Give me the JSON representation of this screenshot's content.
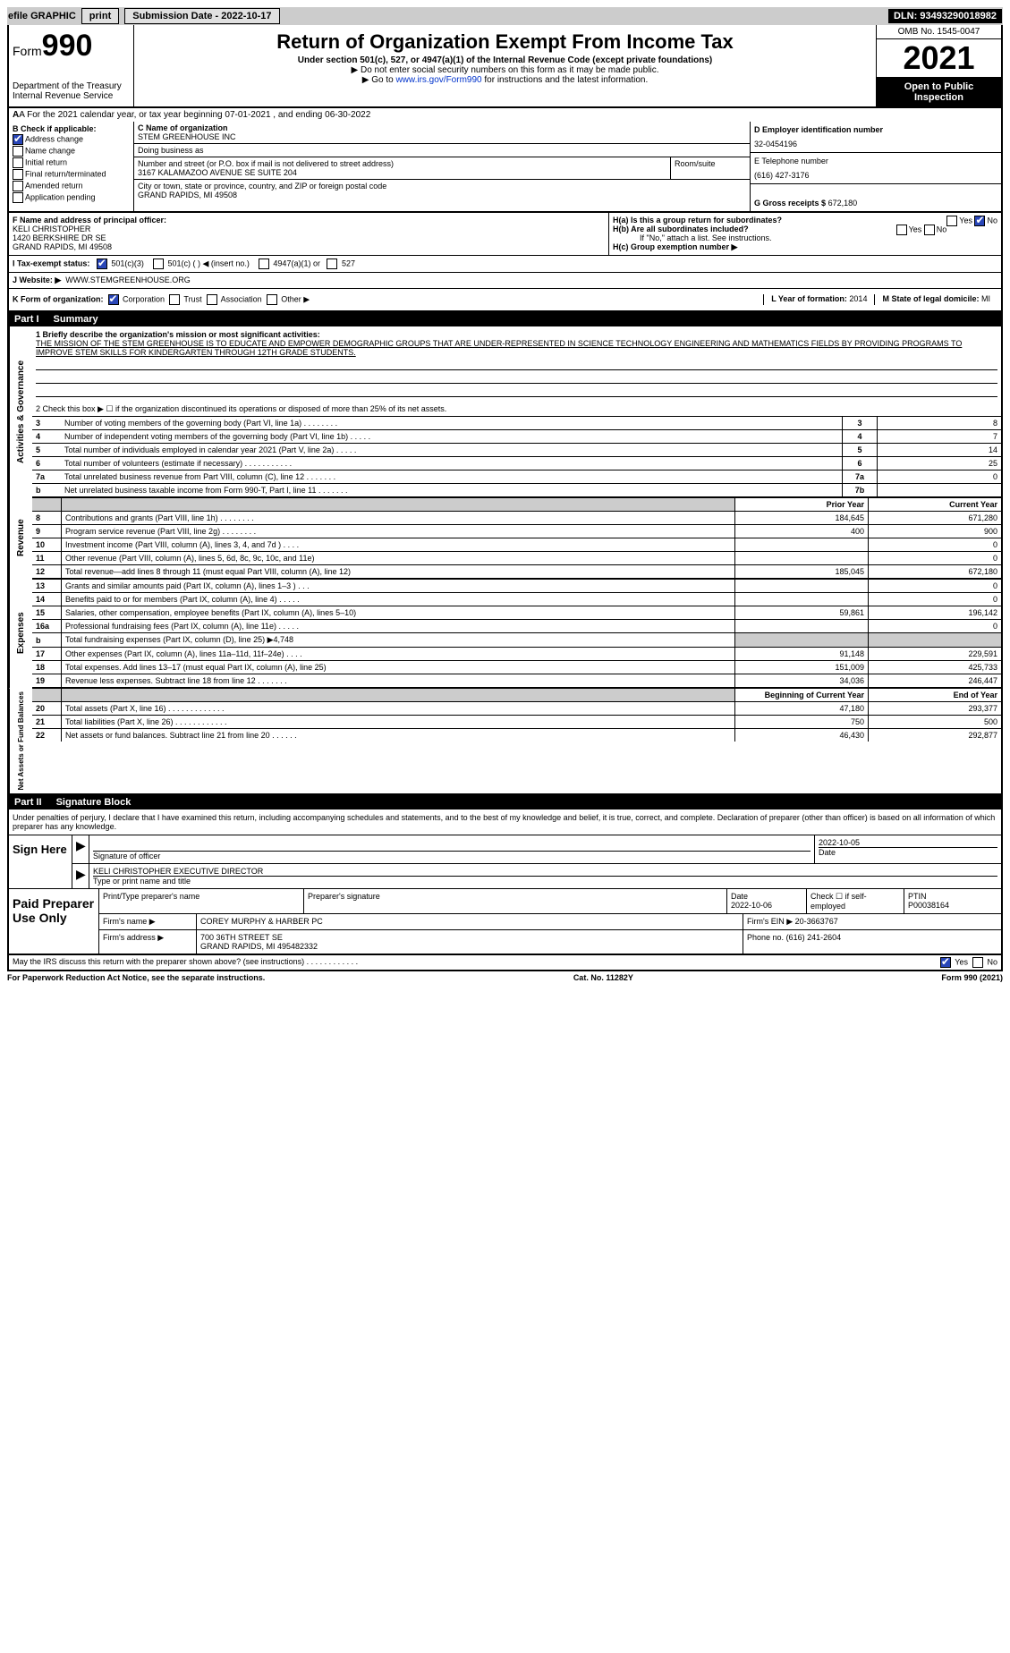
{
  "top_bar": {
    "efile": "efile GRAPHIC",
    "print": "print",
    "sub_date_label": "Submission Date - 2022-10-17",
    "dln": "DLN: 93493290018982"
  },
  "header": {
    "form_label": "Form",
    "form_num": "990",
    "dept": "Department of the Treasury",
    "irs": "Internal Revenue Service",
    "title": "Return of Organization Exempt From Income Tax",
    "sub1": "Under section 501(c), 527, or 4947(a)(1) of the Internal Revenue Code (except private foundations)",
    "sub2": "▶ Do not enter social security numbers on this form as it may be made public.",
    "sub3_pre": "▶ Go to ",
    "sub3_link": "www.irs.gov/Form990",
    "sub3_post": " for instructions and the latest information.",
    "omb": "OMB No. 1545-0047",
    "year": "2021",
    "open": "Open to Public Inspection"
  },
  "section_a": "A For the 2021 calendar year, or tax year beginning 07-01-2021    , and ending 06-30-2022",
  "col_b": {
    "title": "B Check if applicable:",
    "addr_change": "Address change",
    "name_change": "Name change",
    "initial": "Initial return",
    "final": "Final return/terminated",
    "amended": "Amended return",
    "app_pending": "Application pending"
  },
  "col_c": {
    "name_label": "C Name of organization",
    "name": "STEM GREENHOUSE INC",
    "dba_label": "Doing business as",
    "dba": "",
    "street_label": "Number and street (or P.O. box if mail is not delivered to street address)",
    "street": "3167 KALAMAZOO AVENUE SE SUITE 204",
    "room_label": "Room/suite",
    "city_label": "City or town, state or province, country, and ZIP or foreign postal code",
    "city": "GRAND RAPIDS, MI  49508"
  },
  "col_d": {
    "ein_label": "D Employer identification number",
    "ein": "32-0454196",
    "phone_label": "E Telephone number",
    "phone": "(616) 427-3176",
    "gross_label": "G Gross receipts $",
    "gross": "672,180"
  },
  "f_block": {
    "label": "F  Name and address of principal officer:",
    "name": "KELI CHRISTOPHER",
    "street": "1420 BERKSHIRE DR SE",
    "city": "GRAND RAPIDS, MI  49508"
  },
  "h_block": {
    "ha": "H(a)  Is this a group return for subordinates?",
    "hb": "H(b)  Are all subordinates included?",
    "hb_note": "If \"No,\" attach a list. See instructions.",
    "hc": "H(c)  Group exemption number ▶",
    "yes": "Yes",
    "no": "No"
  },
  "i_row": {
    "label": "I    Tax-exempt status:",
    "opt1": "501(c)(3)",
    "opt2": "501(c) (   ) ◀ (insert no.)",
    "opt3": "4947(a)(1) or",
    "opt4": "527"
  },
  "j_row": {
    "label": "J    Website: ▶",
    "url": "WWW.STEMGREENHOUSE.ORG"
  },
  "k_row": {
    "label": "K Form of organization:",
    "corp": "Corporation",
    "trust": "Trust",
    "assoc": "Association",
    "other": "Other ▶",
    "l_label": "L Year of formation:",
    "l_val": "2014",
    "m_label": "M State of legal domicile:",
    "m_val": "MI"
  },
  "part1": {
    "header_num": "Part I",
    "header_title": "Summary",
    "gov_label": "Activities & Governance",
    "rev_label": "Revenue",
    "exp_label": "Expenses",
    "net_label": "Net Assets or Fund Balances",
    "line1_label": "1  Briefly describe the organization's mission or most significant activities:",
    "mission": "THE MISSION OF THE STEM GREENHOUSE IS TO EDUCATE AND EMPOWER DEMOGRAPHIC GROUPS THAT ARE UNDER-REPRESENTED IN SCIENCE TECHNOLOGY ENGINEERING AND MATHEMATICS FIELDS BY PROVIDING PROGRAMS TO IMPROVE STEM SKILLS FOR KINDERGARTEN THROUGH 12TH GRADE STUDENTS.",
    "line2": "2   Check this box ▶ ☐  if the organization discontinued its operations or disposed of more than 25% of its net assets.",
    "rows_gov": [
      {
        "n": "3",
        "d": "Number of voting members of the governing body (Part VI, line 1a)   .    .    .    .    .    .    .    .",
        "box": "3",
        "v": "8"
      },
      {
        "n": "4",
        "d": "Number of independent voting members of the governing body (Part VI, line 1b)   .    .    .    .    .",
        "box": "4",
        "v": "7"
      },
      {
        "n": "5",
        "d": "Total number of individuals employed in calendar year 2021 (Part V, line 2a)   .    .    .    .    .",
        "box": "5",
        "v": "14"
      },
      {
        "n": "6",
        "d": "Total number of volunteers (estimate if necessary)    .    .    .    .    .    .    .    .    .    .    .",
        "box": "6",
        "v": "25"
      },
      {
        "n": "7a",
        "d": "Total unrelated business revenue from Part VIII, column (C), line 12   .    .    .    .    .    .    .",
        "box": "7a",
        "v": "0"
      },
      {
        "n": "b",
        "d": "Net unrelated business taxable income from Form 990-T, Part I, line 11   .    .    .    .    .    .    .",
        "box": "7b",
        "v": ""
      }
    ],
    "py_header": "Prior Year",
    "cy_header": "Current Year",
    "rows_rev": [
      {
        "n": "8",
        "d": "Contributions and grants (Part VIII, line 1h)   .    .    .    .    .    .    .    .",
        "py": "184,645",
        "cy": "671,280"
      },
      {
        "n": "9",
        "d": "Program service revenue (Part VIII, line 2g)   .    .    .    .    .    .    .    .",
        "py": "400",
        "cy": "900"
      },
      {
        "n": "10",
        "d": "Investment income (Part VIII, column (A), lines 3, 4, and 7d )   .    .    .    .",
        "py": "",
        "cy": "0"
      },
      {
        "n": "11",
        "d": "Other revenue (Part VIII, column (A), lines 5, 6d, 8c, 9c, 10c, and 11e)",
        "py": "",
        "cy": "0"
      },
      {
        "n": "12",
        "d": "Total revenue—add lines 8 through 11 (must equal Part VIII, column (A), line 12)",
        "py": "185,045",
        "cy": "672,180"
      }
    ],
    "rows_exp": [
      {
        "n": "13",
        "d": "Grants and similar amounts paid (Part IX, column (A), lines 1–3 )   .    .    .",
        "py": "",
        "cy": "0"
      },
      {
        "n": "14",
        "d": "Benefits paid to or for members (Part IX, column (A), line 4)   .    .    .    .    .",
        "py": "",
        "cy": "0"
      },
      {
        "n": "15",
        "d": "Salaries, other compensation, employee benefits (Part IX, column (A), lines 5–10)",
        "py": "59,861",
        "cy": "196,142"
      },
      {
        "n": "16a",
        "d": "Professional fundraising fees (Part IX, column (A), line 11e)   .    .    .    .    .",
        "py": "",
        "cy": "0"
      },
      {
        "n": "b",
        "d": "Total fundraising expenses (Part IX, column (D), line 25) ▶4,748",
        "py": "shaded",
        "cy": "shaded"
      },
      {
        "n": "17",
        "d": "Other expenses (Part IX, column (A), lines 11a–11d, 11f–24e)   .    .    .    .",
        "py": "91,148",
        "cy": "229,591"
      },
      {
        "n": "18",
        "d": "Total expenses. Add lines 13–17 (must equal Part IX, column (A), line 25)",
        "py": "151,009",
        "cy": "425,733"
      },
      {
        "n": "19",
        "d": "Revenue less expenses. Subtract line 18 from line 12   .    .    .    .    .    .    .",
        "py": "34,036",
        "cy": "246,447"
      }
    ],
    "bcy_header": "Beginning of Current Year",
    "eoy_header": "End of Year",
    "rows_net": [
      {
        "n": "20",
        "d": "Total assets (Part X, line 16)  .    .    .    .    .    .    .    .    .    .    .    .    .",
        "py": "47,180",
        "cy": "293,377"
      },
      {
        "n": "21",
        "d": "Total liabilities (Part X, line 26)   .    .    .    .    .    .    .    .    .    .    .    .",
        "py": "750",
        "cy": "500"
      },
      {
        "n": "22",
        "d": "Net assets or fund balances. Subtract line 21 from line 20   .    .    .    .    .    .",
        "py": "46,430",
        "cy": "292,877"
      }
    ]
  },
  "part2": {
    "header_num": "Part II",
    "header_title": "Signature Block",
    "declaration": "Under penalties of perjury, I declare that I have examined this return, including accompanying schedules and statements, and to the best of my knowledge and belief, it is true, correct, and complete. Declaration of preparer (other than officer) is based on all information of which preparer has any knowledge.",
    "sign_here": "Sign Here",
    "sig_officer": "Signature of officer",
    "sig_date": "2022-10-05",
    "date_label": "Date",
    "officer_name": "KELI CHRISTOPHER  EXECUTIVE DIRECTOR",
    "type_label": "Type or print name and title",
    "paid_prep": "Paid Preparer Use Only",
    "prep_name_label": "Print/Type preparer's name",
    "prep_sig_label": "Preparer's signature",
    "prep_date_label": "Date",
    "prep_date": "2022-10-06",
    "check_label": "Check ☐ if self-employed",
    "ptin_label": "PTIN",
    "ptin": "P00038164",
    "firm_name_label": "Firm's name    ▶",
    "firm_name": "COREY MURPHY & HARBER PC",
    "firm_ein_label": "Firm's EIN ▶",
    "firm_ein": "20-3663767",
    "firm_addr_label": "Firm's address ▶",
    "firm_addr1": "700 36TH STREET SE",
    "firm_addr2": "GRAND RAPIDS, MI  495482332",
    "firm_phone_label": "Phone no.",
    "firm_phone": "(616) 241-2604",
    "discuss": "May the IRS discuss this return with the preparer shown above? (see instructions)    .    .    .    .    .    .    .    .    .    .    .    .",
    "discuss_yes": "Yes",
    "discuss_no": "No"
  },
  "footer": {
    "pra": "For Paperwork Reduction Act Notice, see the separate instructions.",
    "cat": "Cat. No. 11282Y",
    "form": "Form 990 (2021)"
  }
}
